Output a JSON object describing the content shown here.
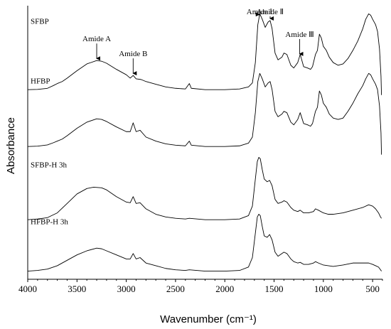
{
  "chart_data": {
    "type": "line",
    "xlabel": "Wavenumber (cm⁻¹)",
    "ylabel": "Absorbance",
    "xlim": [
      4000,
      400
    ],
    "x_reversed": true,
    "xticks": [
      4000,
      3500,
      3000,
      2500,
      2000,
      1500,
      1000,
      500
    ],
    "grid": false,
    "y_ticks_shown": false,
    "series": [
      {
        "name": "SFBP",
        "baseline": 0.0,
        "points": [
          [
            4000,
            0.0
          ],
          [
            3900,
            0.002
          ],
          [
            3800,
            0.01
          ],
          [
            3740,
            0.03
          ],
          [
            3700,
            0.045
          ],
          [
            3650,
            0.06
          ],
          [
            3600,
            0.085
          ],
          [
            3500,
            0.14
          ],
          [
            3400,
            0.19
          ],
          [
            3300,
            0.215
          ],
          [
            3250,
            0.21
          ],
          [
            3200,
            0.195
          ],
          [
            3100,
            0.15
          ],
          [
            3000,
            0.11
          ],
          [
            2960,
            0.085
          ],
          [
            2930,
            0.105
          ],
          [
            2900,
            0.08
          ],
          [
            2850,
            0.075
          ],
          [
            2800,
            0.06
          ],
          [
            2700,
            0.04
          ],
          [
            2600,
            0.02
          ],
          [
            2500,
            0.01
          ],
          [
            2400,
            0.005
          ],
          [
            2360,
            0.045
          ],
          [
            2340,
            0.01
          ],
          [
            2200,
            0.0
          ],
          [
            2000,
            0.0
          ],
          [
            1850,
            0.005
          ],
          [
            1760,
            0.02
          ],
          [
            1720,
            0.05
          ],
          [
            1690,
            0.2
          ],
          [
            1665,
            0.48
          ],
          [
            1645,
            0.56
          ],
          [
            1620,
            0.52
          ],
          [
            1590,
            0.46
          ],
          [
            1560,
            0.5
          ],
          [
            1540,
            0.51
          ],
          [
            1520,
            0.45
          ],
          [
            1490,
            0.27
          ],
          [
            1460,
            0.22
          ],
          [
            1420,
            0.24
          ],
          [
            1400,
            0.27
          ],
          [
            1370,
            0.26
          ],
          [
            1330,
            0.18
          ],
          [
            1300,
            0.16
          ],
          [
            1260,
            0.2
          ],
          [
            1235,
            0.26
          ],
          [
            1200,
            0.17
          ],
          [
            1160,
            0.16
          ],
          [
            1130,
            0.15
          ],
          [
            1110,
            0.17
          ],
          [
            1080,
            0.26
          ],
          [
            1060,
            0.29
          ],
          [
            1040,
            0.41
          ],
          [
            1020,
            0.38
          ],
          [
            1000,
            0.32
          ],
          [
            970,
            0.29
          ],
          [
            940,
            0.24
          ],
          [
            900,
            0.2
          ],
          [
            850,
            0.18
          ],
          [
            800,
            0.19
          ],
          [
            750,
            0.23
          ],
          [
            700,
            0.29
          ],
          [
            650,
            0.36
          ],
          [
            600,
            0.45
          ],
          [
            570,
            0.52
          ],
          [
            540,
            0.56
          ],
          [
            520,
            0.55
          ],
          [
            500,
            0.52
          ],
          [
            470,
            0.48
          ],
          [
            450,
            0.43
          ],
          [
            430,
            0.3
          ],
          [
            415,
            0.1
          ],
          [
            410,
            -0.04
          ]
        ]
      },
      {
        "name": "HFBP",
        "baseline": -0.42,
        "points": [
          [
            4000,
            0.0
          ],
          [
            3900,
            0.003
          ],
          [
            3800,
            0.012
          ],
          [
            3740,
            0.028
          ],
          [
            3700,
            0.04
          ],
          [
            3650,
            0.055
          ],
          [
            3600,
            0.08
          ],
          [
            3500,
            0.135
          ],
          [
            3400,
            0.18
          ],
          [
            3300,
            0.205
          ],
          [
            3250,
            0.2
          ],
          [
            3200,
            0.185
          ],
          [
            3100,
            0.145
          ],
          [
            3000,
            0.11
          ],
          [
            2960,
            0.11
          ],
          [
            2930,
            0.175
          ],
          [
            2900,
            0.11
          ],
          [
            2860,
            0.12
          ],
          [
            2800,
            0.07
          ],
          [
            2700,
            0.04
          ],
          [
            2600,
            0.02
          ],
          [
            2500,
            0.01
          ],
          [
            2400,
            0.005
          ],
          [
            2360,
            0.04
          ],
          [
            2340,
            0.01
          ],
          [
            2200,
            0.0
          ],
          [
            2000,
            0.0
          ],
          [
            1850,
            0.005
          ],
          [
            1760,
            0.025
          ],
          [
            1720,
            0.07
          ],
          [
            1690,
            0.25
          ],
          [
            1665,
            0.48
          ],
          [
            1645,
            0.54
          ],
          [
            1620,
            0.5
          ],
          [
            1590,
            0.44
          ],
          [
            1560,
            0.47
          ],
          [
            1540,
            0.48
          ],
          [
            1520,
            0.42
          ],
          [
            1490,
            0.26
          ],
          [
            1460,
            0.22
          ],
          [
            1420,
            0.24
          ],
          [
            1400,
            0.26
          ],
          [
            1370,
            0.25
          ],
          [
            1330,
            0.18
          ],
          [
            1300,
            0.16
          ],
          [
            1260,
            0.2
          ],
          [
            1235,
            0.25
          ],
          [
            1200,
            0.17
          ],
          [
            1160,
            0.16
          ],
          [
            1130,
            0.15
          ],
          [
            1110,
            0.17
          ],
          [
            1080,
            0.26
          ],
          [
            1060,
            0.29
          ],
          [
            1040,
            0.41
          ],
          [
            1020,
            0.38
          ],
          [
            1000,
            0.32
          ],
          [
            970,
            0.29
          ],
          [
            940,
            0.24
          ],
          [
            900,
            0.21
          ],
          [
            850,
            0.2
          ],
          [
            800,
            0.21
          ],
          [
            750,
            0.26
          ],
          [
            700,
            0.32
          ],
          [
            650,
            0.39
          ],
          [
            600,
            0.45
          ],
          [
            570,
            0.5
          ],
          [
            540,
            0.54
          ],
          [
            520,
            0.53
          ],
          [
            500,
            0.5
          ],
          [
            470,
            0.46
          ],
          [
            450,
            0.42
          ],
          [
            430,
            0.3
          ],
          [
            415,
            0.1
          ],
          [
            410,
            -0.06
          ]
        ]
      },
      {
        "name": "SFBP-H 3h",
        "baseline": -0.96,
        "points": [
          [
            4000,
            0.0
          ],
          [
            3900,
            0.005
          ],
          [
            3800,
            0.015
          ],
          [
            3700,
            0.05
          ],
          [
            3600,
            0.12
          ],
          [
            3500,
            0.19
          ],
          [
            3400,
            0.23
          ],
          [
            3330,
            0.24
          ],
          [
            3250,
            0.235
          ],
          [
            3200,
            0.22
          ],
          [
            3100,
            0.17
          ],
          [
            3000,
            0.13
          ],
          [
            2960,
            0.125
          ],
          [
            2930,
            0.17
          ],
          [
            2900,
            0.12
          ],
          [
            2860,
            0.125
          ],
          [
            2800,
            0.08
          ],
          [
            2700,
            0.04
          ],
          [
            2600,
            0.02
          ],
          [
            2500,
            0.01
          ],
          [
            2400,
            0.005
          ],
          [
            2360,
            0.01
          ],
          [
            2200,
            0.0
          ],
          [
            2000,
            0.0
          ],
          [
            1850,
            0.005
          ],
          [
            1760,
            0.03
          ],
          [
            1720,
            0.1
          ],
          [
            1690,
            0.3
          ],
          [
            1670,
            0.43
          ],
          [
            1655,
            0.46
          ],
          [
            1640,
            0.45
          ],
          [
            1620,
            0.37
          ],
          [
            1600,
            0.3
          ],
          [
            1570,
            0.28
          ],
          [
            1545,
            0.29
          ],
          [
            1520,
            0.25
          ],
          [
            1490,
            0.15
          ],
          [
            1460,
            0.12
          ],
          [
            1420,
            0.13
          ],
          [
            1400,
            0.14
          ],
          [
            1370,
            0.13
          ],
          [
            1330,
            0.09
          ],
          [
            1300,
            0.07
          ],
          [
            1260,
            0.06
          ],
          [
            1235,
            0.07
          ],
          [
            1200,
            0.05
          ],
          [
            1150,
            0.05
          ],
          [
            1100,
            0.06
          ],
          [
            1080,
            0.08
          ],
          [
            1050,
            0.07
          ],
          [
            1000,
            0.05
          ],
          [
            950,
            0.04
          ],
          [
            900,
            0.04
          ],
          [
            800,
            0.05
          ],
          [
            700,
            0.07
          ],
          [
            600,
            0.09
          ],
          [
            540,
            0.11
          ],
          [
            500,
            0.1
          ],
          [
            470,
            0.08
          ],
          [
            440,
            0.05
          ],
          [
            420,
            0.02
          ],
          [
            410,
            0.01
          ]
        ]
      },
      {
        "name": "HFBP-H 3h",
        "baseline": -1.34,
        "points": [
          [
            4000,
            0.0
          ],
          [
            3900,
            0.005
          ],
          [
            3800,
            0.015
          ],
          [
            3700,
            0.04
          ],
          [
            3600,
            0.08
          ],
          [
            3500,
            0.12
          ],
          [
            3400,
            0.15
          ],
          [
            3300,
            0.17
          ],
          [
            3250,
            0.165
          ],
          [
            3200,
            0.15
          ],
          [
            3100,
            0.12
          ],
          [
            3000,
            0.09
          ],
          [
            2960,
            0.09
          ],
          [
            2930,
            0.13
          ],
          [
            2900,
            0.09
          ],
          [
            2860,
            0.1
          ],
          [
            2800,
            0.06
          ],
          [
            2700,
            0.04
          ],
          [
            2600,
            0.02
          ],
          [
            2500,
            0.01
          ],
          [
            2400,
            0.005
          ],
          [
            2360,
            0.01
          ],
          [
            2200,
            0.0
          ],
          [
            2000,
            0.0
          ],
          [
            1850,
            0.005
          ],
          [
            1760,
            0.03
          ],
          [
            1720,
            0.1
          ],
          [
            1690,
            0.28
          ],
          [
            1670,
            0.4
          ],
          [
            1655,
            0.42
          ],
          [
            1640,
            0.41
          ],
          [
            1620,
            0.33
          ],
          [
            1600,
            0.26
          ],
          [
            1570,
            0.25
          ],
          [
            1545,
            0.27
          ],
          [
            1520,
            0.23
          ],
          [
            1490,
            0.14
          ],
          [
            1460,
            0.11
          ],
          [
            1420,
            0.13
          ],
          [
            1400,
            0.14
          ],
          [
            1370,
            0.13
          ],
          [
            1330,
            0.09
          ],
          [
            1300,
            0.07
          ],
          [
            1260,
            0.06
          ],
          [
            1235,
            0.065
          ],
          [
            1200,
            0.05
          ],
          [
            1150,
            0.05
          ],
          [
            1100,
            0.06
          ],
          [
            1080,
            0.07
          ],
          [
            1050,
            0.06
          ],
          [
            1000,
            0.045
          ],
          [
            950,
            0.04
          ],
          [
            900,
            0.035
          ],
          [
            800,
            0.045
          ],
          [
            700,
            0.06
          ],
          [
            600,
            0.06
          ],
          [
            540,
            0.06
          ],
          [
            500,
            0.05
          ],
          [
            470,
            0.04
          ],
          [
            440,
            0.03
          ],
          [
            420,
            0.01
          ],
          [
            410,
            0.0
          ]
        ]
      }
    ],
    "ylim": [
      -1.4,
      0.62
    ],
    "annotations": [
      {
        "text": "Amide A",
        "x": 3300,
        "arrow_to_series": "SFBP"
      },
      {
        "text": "Amide B",
        "x": 2930,
        "arrow_to_series": "SFBP"
      },
      {
        "text": "Amide Ⅰ",
        "x": 1650,
        "arrow_to_series": "SFBP"
      },
      {
        "text": "Amide Ⅱ",
        "x": 1540,
        "arrow_to_series": "SFBP"
      },
      {
        "text": "Amide Ⅲ",
        "x": 1240,
        "arrow_to_series": "SFBP"
      }
    ]
  }
}
